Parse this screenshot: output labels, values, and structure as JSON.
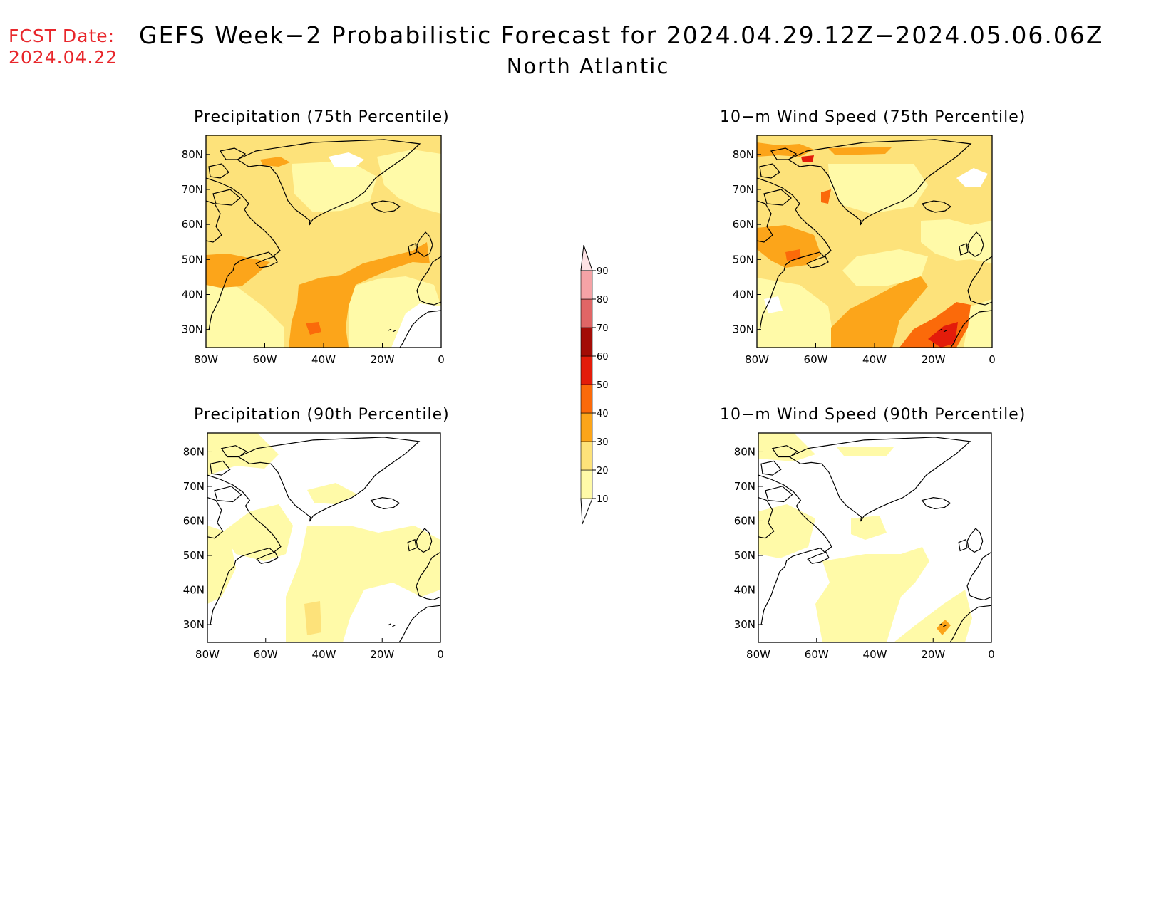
{
  "fcst": {
    "line1": "FCST Date:",
    "line2": "2024.04.22"
  },
  "title": "GEFS Week−2 Probabilistic Forecast for 2024.04.29.12Z−2024.05.06.06Z",
  "subtitle": "North Atlantic",
  "panels": [
    {
      "title": "Precipitation (75th Percentile)"
    },
    {
      "title": "10−m Wind Speed (75th Percentile)"
    },
    {
      "title": "Precipitation (90th Percentile)"
    },
    {
      "title": "10−m Wind Speed (90th Percentile)"
    }
  ],
  "axes": {
    "lat_labels": [
      "80N",
      "70N",
      "60N",
      "50N",
      "40N",
      "30N"
    ],
    "lon_labels": [
      "80W",
      "60W",
      "40W",
      "20W",
      "0"
    ]
  },
  "colorbar": {
    "levels": [
      "10",
      "20",
      "30",
      "40",
      "50",
      "60",
      "70",
      "80",
      "90"
    ],
    "colors": [
      "#fffaa8",
      "#fde27a",
      "#fca51a",
      "#fb6a0a",
      "#e31c0a",
      "#a30c06",
      "#e06666",
      "#f5a3a6",
      "#fde2e4"
    ],
    "low_color": "#ffffff"
  }
}
